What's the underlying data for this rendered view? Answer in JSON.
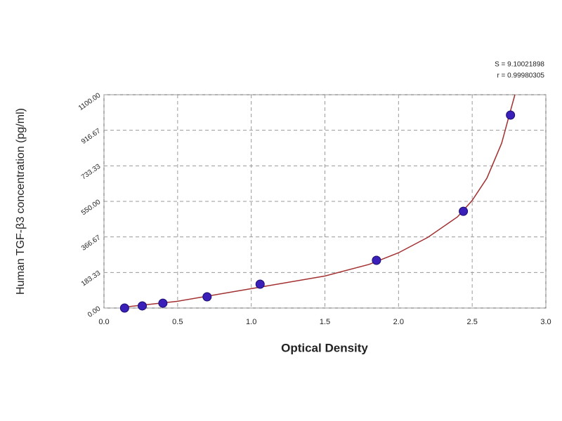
{
  "chart_data": {
    "type": "scatter",
    "x_label": "Optical Density",
    "y_label": "Human TGF-β3 concentration (pg/ml)",
    "annotations": [
      "S = 9.10021898",
      "r = 0.99980305"
    ],
    "xlim": [
      0,
      3
    ],
    "ylim": [
      0,
      1100
    ],
    "xticks": [
      {
        "value": 0,
        "label": "0.0"
      },
      0.5,
      {
        "value": 1,
        "label": "1.0"
      },
      1.5,
      {
        "value": 2,
        "label": "2.0"
      },
      2.5,
      {
        "value": 3,
        "label": "3.0"
      }
    ],
    "yticks": [
      {
        "value": 0,
        "label": "0.00"
      },
      183.33,
      366.67,
      {
        "value": 550,
        "label": "550.00"
      },
      733.33,
      916.67,
      {
        "value": 1100,
        "label": "1100.00"
      }
    ],
    "grid": true,
    "series": [
      {
        "color": "#3a1fb8",
        "style": "points",
        "x": [
          0.14,
          0.26,
          0.4,
          0.7,
          1.06,
          1.85,
          2.44,
          2.76
        ],
        "values": [
          0,
          11,
          25,
          58,
          123,
          246,
          499,
          995
        ]
      },
      {
        "color": "#a33030",
        "style": "line",
        "x": [
          0.14,
          0.5,
          1.0,
          1.5,
          1.8,
          2.0,
          2.2,
          2.4,
          2.5,
          2.6,
          2.7,
          2.75,
          2.79
        ],
        "values": [
          5,
          35,
          100,
          165,
          225,
          285,
          365,
          470,
          555,
          670,
          850,
          990,
          1100
        ]
      }
    ]
  }
}
